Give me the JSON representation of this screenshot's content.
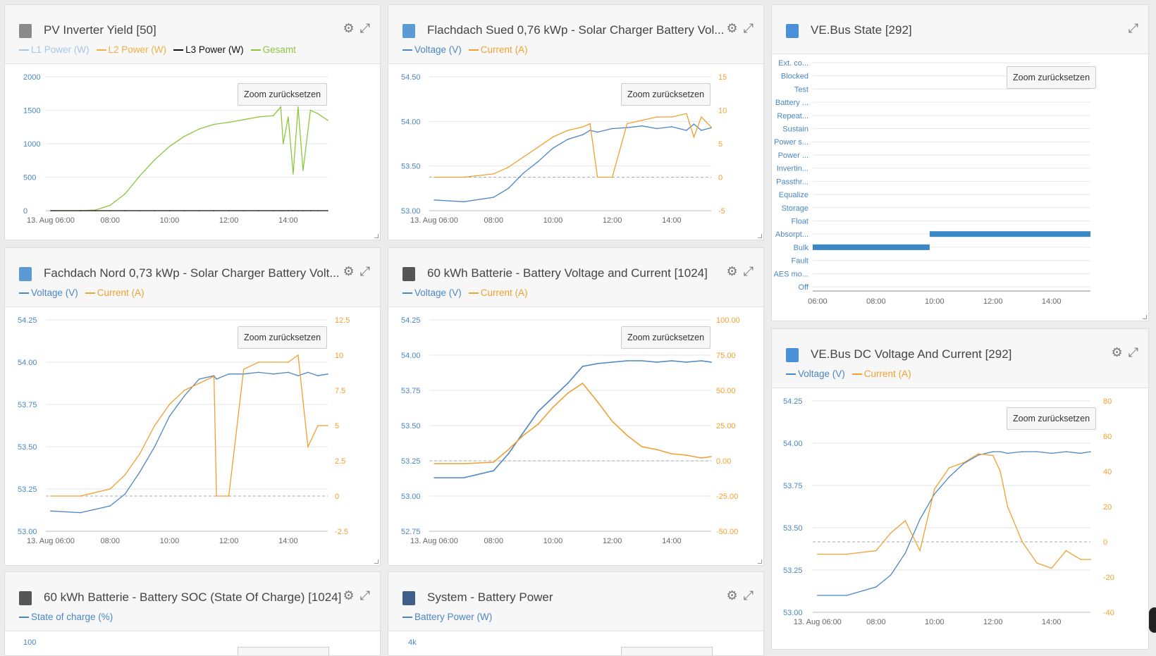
{
  "ui": {
    "zoom_label": "Zoom zurücksetzen",
    "gear_icon": "gear-icon",
    "expand_icon": "expand-icon"
  },
  "panels": [
    {
      "id": "pv",
      "title": "PV Inverter Yield [50]",
      "legend": [
        {
          "label": "L1 Power (W)",
          "color": "#a8c6e6"
        },
        {
          "label": "L2 Power (W)",
          "color": "#f0b046"
        },
        {
          "label": "L3 Power (W)",
          "color": "#111111"
        },
        {
          "label": "Gesamt",
          "color": "#8cc63f"
        }
      ],
      "left_ticks": [
        "2000",
        "1500",
        "1000",
        "500",
        "0"
      ],
      "right_ticks": [],
      "x_ticks": [
        "13. Aug 06:00",
        "08:00",
        "10:00",
        "12:00",
        "14:00"
      ]
    },
    {
      "id": "sued",
      "title": "Flachdach Sued 0,76 kWp - Solar Charger Battery Vol...",
      "legend": [
        {
          "label": "Voltage (V)",
          "color": "#4a86c5"
        },
        {
          "label": "Current (A)",
          "color": "#f0a030"
        }
      ],
      "left_ticks": [
        "54.50",
        "54.00",
        "53.50",
        "53.00"
      ],
      "right_ticks": [
        "15",
        "10",
        "5",
        "0",
        "-5"
      ],
      "x_ticks": [
        "13. Aug 06:00",
        "08:00",
        "10:00",
        "12:00",
        "14:00"
      ]
    },
    {
      "id": "nord",
      "title": "Fachdach Nord 0,73 kWp - Solar Charger Battery Volt...",
      "legend": [
        {
          "label": "Voltage (V)",
          "color": "#4a86c5"
        },
        {
          "label": "Current (A)",
          "color": "#f0a030"
        }
      ],
      "left_ticks": [
        "54.25",
        "54.00",
        "53.75",
        "53.50",
        "53.25",
        "53.00"
      ],
      "right_ticks": [
        "12.5",
        "10",
        "7.5",
        "5",
        "2.5",
        "0",
        "-2.5"
      ],
      "x_ticks": [
        "13. Aug 06:00",
        "08:00",
        "10:00",
        "12:00",
        "14:00"
      ]
    },
    {
      "id": "batt",
      "title": "60 kWh Batterie - Battery Voltage and Current [1024]",
      "legend": [
        {
          "label": "Voltage (V)",
          "color": "#4a86c5"
        },
        {
          "label": "Current (A)",
          "color": "#f0a030"
        }
      ],
      "left_ticks": [
        "54.25",
        "54.00",
        "53.75",
        "53.50",
        "53.25",
        "53.00",
        "52.75"
      ],
      "right_ticks": [
        "100.00",
        "75.00",
        "50.00",
        "25.00",
        "0.00",
        "-25.00",
        "-50.00"
      ],
      "x_ticks": [
        "13. Aug 06:00",
        "08:00",
        "10:00",
        "12:00",
        "14:00"
      ]
    },
    {
      "id": "vestate",
      "title": "VE.Bus State [292]",
      "categories": [
        "Ext. co...",
        "Blocked",
        "Test",
        "Battery ...",
        "Repeat...",
        "Sustain",
        "Power s...",
        "Power ...",
        "Invertin...",
        "Passthr...",
        "Equalize",
        "Storage",
        "Float",
        "Absorpt...",
        "Bulk",
        "Fault",
        "AES mo...",
        "Off"
      ],
      "x_ticks": [
        "06:00",
        "08:00",
        "10:00",
        "12:00",
        "14:00"
      ]
    },
    {
      "id": "vedc",
      "title": "VE.Bus DC Voltage And Current [292]",
      "legend": [
        {
          "label": "Voltage (V)",
          "color": "#4a86c5"
        },
        {
          "label": "Current (A)",
          "color": "#f0a030"
        }
      ],
      "left_ticks": [
        "54.25",
        "54.00",
        "53.75",
        "53.50",
        "53.25",
        "53.00"
      ],
      "right_ticks": [
        "80",
        "60",
        "40",
        "20",
        "0",
        "-20",
        "-40"
      ],
      "x_ticks": [
        "13. Aug 06:00",
        "08:00",
        "10:00",
        "12:00",
        "14:00"
      ]
    },
    {
      "id": "soc",
      "title": "60 kWh Batterie - Battery SOC (State Of Charge) [1024]",
      "legend": [
        {
          "label": "State of charge (%)",
          "color": "#4a86c5"
        }
      ],
      "left_ticks": [
        "100"
      ]
    },
    {
      "id": "sys",
      "title": "System - Battery Power",
      "legend": [
        {
          "label": "Battery Power (W)",
          "color": "#4a86c5"
        }
      ],
      "left_ticks": [
        "4k"
      ]
    }
  ],
  "chart_data": [
    {
      "type": "line",
      "panel": "pv",
      "x": [
        "06:00",
        "07:00",
        "07:30",
        "08:00",
        "08:30",
        "09:00",
        "09:30",
        "10:00",
        "10:30",
        "11:00",
        "11:30",
        "12:00",
        "12:30",
        "13:00",
        "13:30",
        "13:45",
        "13:50",
        "14:00",
        "14:10",
        "14:20",
        "14:30",
        "14:45",
        "15:00",
        "15:20"
      ],
      "series": [
        {
          "name": "Gesamt",
          "values": [
            0,
            0,
            10,
            80,
            250,
            520,
            760,
            960,
            1110,
            1220,
            1290,
            1320,
            1360,
            1400,
            1420,
            1550,
            1000,
            1400,
            550,
            1550,
            600,
            1500,
            1450,
            1350
          ]
        },
        {
          "name": "L3 Power (W)",
          "values": [
            0,
            0,
            0,
            0,
            0,
            0,
            0,
            0,
            0,
            0,
            0,
            0,
            0,
            0,
            0,
            0,
            0,
            0,
            0,
            0,
            0,
            0,
            0,
            0
          ]
        }
      ],
      "ylim": [
        0,
        2000
      ]
    },
    {
      "type": "line",
      "panel": "sued",
      "x": [
        "06:00",
        "07:00",
        "08:00",
        "08:30",
        "09:00",
        "09:30",
        "10:00",
        "10:30",
        "11:00",
        "11:15",
        "11:30",
        "12:00",
        "12:30",
        "13:00",
        "13:30",
        "14:00",
        "14:30",
        "14:45",
        "15:00",
        "15:20"
      ],
      "series": [
        {
          "name": "Voltage (V)",
          "axis": "left",
          "values": [
            53.12,
            53.1,
            53.15,
            53.25,
            53.42,
            53.55,
            53.7,
            53.8,
            53.85,
            53.9,
            53.88,
            53.92,
            53.93,
            53.95,
            53.92,
            53.94,
            53.9,
            53.97,
            53.9,
            53.93
          ]
        },
        {
          "name": "Current (A)",
          "axis": "right",
          "values": [
            0,
            0,
            0.5,
            1.5,
            3,
            4.5,
            6,
            7,
            7.5,
            8,
            0,
            0,
            8,
            8.5,
            9,
            9,
            9.5,
            6,
            9,
            7.5
          ]
        }
      ],
      "ylim": [
        53.0,
        54.5
      ],
      "y2lim": [
        -5,
        15
      ]
    },
    {
      "type": "line",
      "panel": "nord",
      "x": [
        "06:00",
        "07:00",
        "08:00",
        "08:30",
        "09:00",
        "09:30",
        "10:00",
        "10:30",
        "11:00",
        "11:30",
        "11:35",
        "12:00",
        "12:30",
        "13:00",
        "13:30",
        "14:00",
        "14:20",
        "14:40",
        "15:00",
        "15:20"
      ],
      "series": [
        {
          "name": "Voltage (V)",
          "axis": "left",
          "values": [
            53.12,
            53.11,
            53.15,
            53.22,
            53.35,
            53.5,
            53.68,
            53.8,
            53.9,
            53.92,
            53.9,
            53.93,
            53.93,
            53.94,
            53.93,
            53.94,
            53.92,
            53.94,
            53.92,
            53.93
          ]
        },
        {
          "name": "Current (A)",
          "axis": "right",
          "values": [
            0,
            0,
            0.5,
            1.5,
            3,
            5,
            6.5,
            7.5,
            8,
            8.5,
            0,
            0,
            9,
            9.5,
            9.5,
            9.5,
            10,
            3.5,
            5,
            5
          ]
        }
      ],
      "ylim": [
        53.0,
        54.25
      ],
      "y2lim": [
        -2.5,
        12.5
      ]
    },
    {
      "type": "line",
      "panel": "batt",
      "x": [
        "06:00",
        "07:00",
        "08:00",
        "08:30",
        "09:00",
        "09:30",
        "10:00",
        "10:30",
        "11:00",
        "11:30",
        "12:00",
        "12:30",
        "13:00",
        "13:30",
        "14:00",
        "14:30",
        "15:00",
        "15:20"
      ],
      "series": [
        {
          "name": "Voltage (V)",
          "axis": "left",
          "values": [
            53.13,
            53.13,
            53.18,
            53.3,
            53.45,
            53.6,
            53.7,
            53.8,
            53.92,
            53.94,
            53.95,
            53.96,
            53.96,
            53.95,
            53.96,
            53.95,
            53.96,
            53.95
          ]
        },
        {
          "name": "Current (A)",
          "axis": "right",
          "values": [
            -2,
            -2,
            -1,
            8,
            18,
            26,
            38,
            48,
            55,
            42,
            28,
            18,
            10,
            8,
            5,
            4,
            2,
            3
          ]
        }
      ],
      "ylim": [
        52.75,
        54.25
      ],
      "y2lim": [
        -50,
        100
      ]
    },
    {
      "type": "bar",
      "panel": "vestate",
      "categories": [
        "Bulk",
        "Absorpt..."
      ],
      "ranges": [
        [
          "05:50",
          "09:50"
        ],
        [
          "09:50",
          "15:20"
        ]
      ]
    },
    {
      "type": "line",
      "panel": "vedc",
      "x": [
        "06:00",
        "07:00",
        "08:00",
        "08:30",
        "09:00",
        "09:30",
        "10:00",
        "10:30",
        "11:00",
        "11:30",
        "12:00",
        "12:15",
        "12:30",
        "13:00",
        "13:30",
        "14:00",
        "14:30",
        "15:00",
        "15:20"
      ],
      "series": [
        {
          "name": "Voltage (V)",
          "axis": "left",
          "values": [
            53.1,
            53.1,
            53.15,
            53.22,
            53.35,
            53.55,
            53.7,
            53.8,
            53.88,
            53.93,
            53.95,
            53.95,
            53.94,
            53.95,
            53.95,
            53.94,
            53.95,
            53.94,
            53.95
          ]
        },
        {
          "name": "Current (A)",
          "axis": "right",
          "values": [
            -7,
            -7,
            -5,
            5,
            12,
            -5,
            30,
            42,
            45,
            50,
            49,
            40,
            20,
            0,
            -12,
            -15,
            -5,
            -10,
            -10
          ]
        }
      ],
      "ylim": [
        53.0,
        54.25
      ],
      "y2lim": [
        -40,
        80
      ]
    }
  ]
}
